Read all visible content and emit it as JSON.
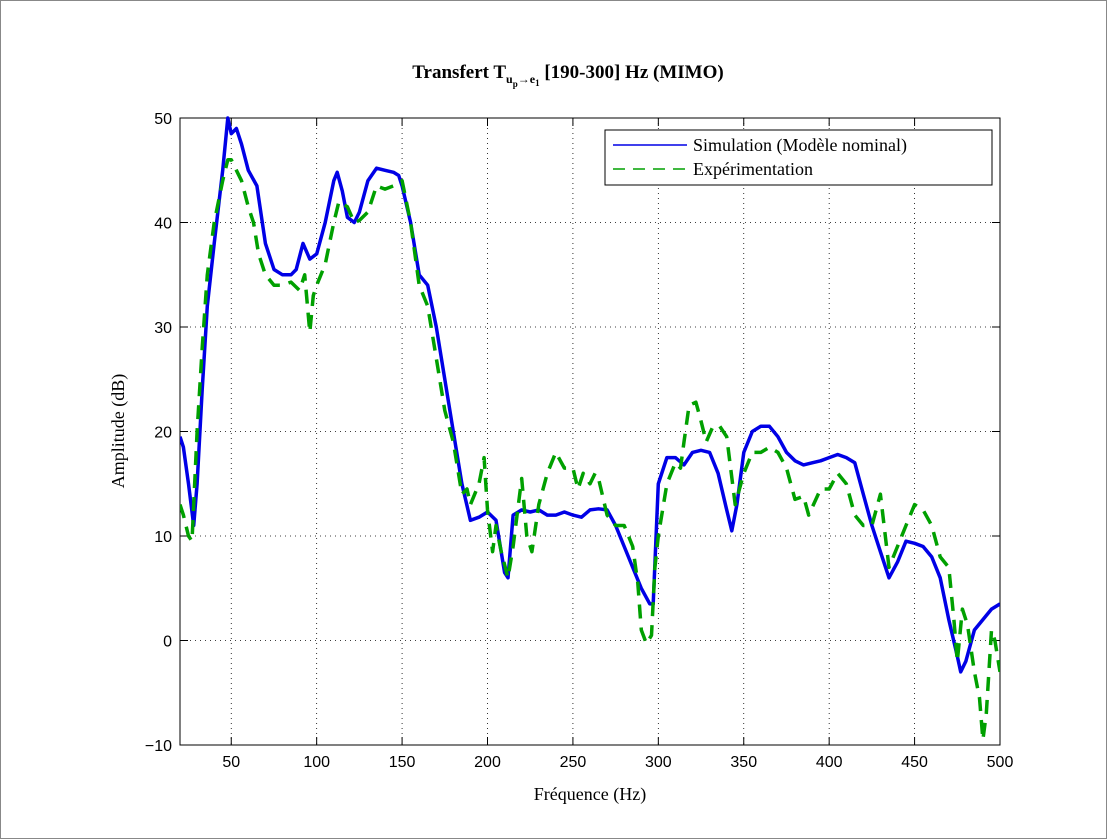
{
  "chart_data": {
    "type": "line",
    "title_parts": [
      "Transfert T",
      "u",
      "p",
      "→e",
      "1",
      " [190-300] Hz (MIMO)"
    ],
    "xlabel": "Fréquence (Hz)",
    "ylabel": "Amplitude (dB)",
    "xlim": [
      20,
      500
    ],
    "ylim": [
      -10,
      50
    ],
    "xticks": [
      50,
      100,
      150,
      200,
      250,
      300,
      350,
      400,
      450,
      500
    ],
    "yticks": [
      {
        "value": -10,
        "label": "−10"
      },
      0,
      10,
      20,
      30,
      40,
      50
    ],
    "grid": true,
    "legend": "upper right",
    "series": [
      {
        "name": "Simulation (Modèle nominal)",
        "color": "#0000e6",
        "dash": "solid",
        "x": [
          20,
          22,
          25,
          28,
          30,
          33,
          36,
          40,
          45,
          48,
          50,
          53,
          56,
          60,
          65,
          70,
          75,
          80,
          85,
          88,
          92,
          96,
          100,
          105,
          110,
          112,
          115,
          118,
          122,
          125,
          130,
          135,
          140,
          145,
          148,
          150,
          155,
          160,
          165,
          170,
          175,
          180,
          185,
          190,
          195,
          200,
          205,
          210,
          212,
          215,
          220,
          225,
          230,
          235,
          240,
          245,
          250,
          255,
          260,
          265,
          270,
          275,
          280,
          285,
          290,
          295,
          297,
          300,
          305,
          310,
          315,
          320,
          325,
          330,
          335,
          340,
          343,
          346,
          350,
          355,
          360,
          365,
          370,
          375,
          380,
          385,
          390,
          395,
          400,
          405,
          410,
          415,
          420,
          425,
          430,
          435,
          440,
          445,
          450,
          455,
          460,
          465,
          470,
          475,
          477,
          480,
          485,
          490,
          495,
          500
        ],
        "values": [
          19.5,
          18.5,
          15,
          11,
          15,
          24,
          32,
          38,
          45,
          50,
          48.5,
          49,
          47.5,
          45,
          43.5,
          38,
          35.5,
          35,
          35,
          35.5,
          38,
          36.5,
          37,
          40,
          44,
          44.8,
          43,
          40.5,
          40,
          41,
          44,
          45.2,
          45,
          44.8,
          44.5,
          43.5,
          40,
          35,
          34,
          30,
          25,
          20,
          15,
          11.5,
          11.8,
          12.3,
          11.5,
          6.5,
          6,
          12,
          12.5,
          12.3,
          12.5,
          12,
          12,
          12.3,
          12,
          11.8,
          12.5,
          12.6,
          12.5,
          11,
          9,
          7,
          5,
          3.5,
          3.5,
          15,
          17.5,
          17.5,
          16.8,
          18,
          18.2,
          18,
          16,
          12.5,
          10.5,
          13,
          18,
          20,
          20.5,
          20.5,
          19.5,
          18,
          17.2,
          16.8,
          17,
          17.2,
          17.5,
          17.8,
          17.5,
          17,
          14,
          11,
          8.5,
          6,
          7.5,
          9.5,
          9.3,
          9,
          8,
          6,
          2,
          -1.5,
          -3,
          -2,
          1,
          2,
          3,
          3.5
        ]
      },
      {
        "name": "Expérimentation",
        "color": "#00a000",
        "dash": "dashed",
        "x": [
          20,
          22,
          25,
          27,
          30,
          33,
          36,
          40,
          45,
          48,
          50,
          53,
          56,
          60,
          63,
          66,
          70,
          75,
          80,
          85,
          90,
          93,
          96,
          98,
          100,
          105,
          110,
          113,
          118,
          122,
          125,
          130,
          135,
          140,
          145,
          150,
          155,
          160,
          165,
          170,
          175,
          180,
          185,
          188,
          190,
          195,
          198,
          200,
          203,
          205,
          208,
          212,
          215,
          220,
          223,
          226,
          230,
          235,
          240,
          245,
          250,
          253,
          256,
          260,
          263,
          265,
          270,
          275,
          280,
          285,
          288,
          290,
          293,
          296,
          298,
          300,
          305,
          310,
          313,
          315,
          318,
          322,
          325,
          328,
          332,
          336,
          340,
          345,
          350,
          355,
          360,
          365,
          370,
          375,
          380,
          385,
          388,
          395,
          400,
          405,
          410,
          415,
          420,
          425,
          430,
          435,
          440,
          445,
          450,
          455,
          460,
          465,
          470,
          473,
          475,
          478,
          481,
          485,
          488,
          490,
          492,
          495,
          497,
          500
        ],
        "values": [
          13,
          12,
          10,
          9.5,
          20,
          28,
          35,
          40,
          44,
          46,
          46,
          45,
          44,
          41.5,
          40,
          37,
          35,
          34,
          34,
          34.3,
          33.5,
          35,
          29.5,
          33,
          34,
          36,
          40,
          42,
          41.5,
          40,
          40.2,
          41,
          43.5,
          43.2,
          43.5,
          44,
          40,
          34,
          32,
          27,
          22,
          19,
          14,
          14.5,
          13,
          15,
          17.5,
          12.5,
          8.5,
          11,
          8.5,
          6,
          9,
          15.5,
          10,
          8.5,
          13,
          16,
          18,
          16.5,
          16.5,
          14.5,
          16,
          15,
          16,
          15.5,
          12,
          11,
          11,
          9,
          5.5,
          1,
          -0.3,
          0.5,
          7,
          10,
          15,
          17,
          16.5,
          19,
          22.5,
          22.8,
          21,
          19,
          20.5,
          20.5,
          19.5,
          13,
          16,
          18,
          18,
          18.5,
          18,
          16.5,
          13.5,
          13.8,
          12,
          14.5,
          14.5,
          16,
          15,
          12,
          11,
          11,
          14,
          7,
          9,
          11,
          13,
          12.5,
          11,
          8,
          7,
          2,
          -2,
          3,
          1.5,
          -3,
          -5.5,
          -9.5,
          -7,
          1,
          0,
          -3
        ]
      }
    ]
  }
}
